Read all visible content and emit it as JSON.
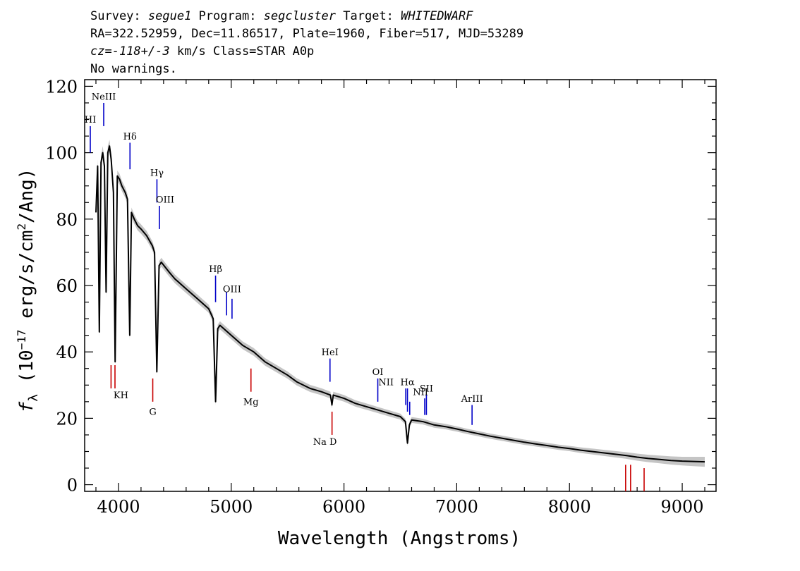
{
  "header": {
    "line1": {
      "survey_label": "Survey: ",
      "survey": "segue1",
      "program_label": " Program: ",
      "program": "segcluster",
      "target_label": " Target: ",
      "target": "WHITEDWARF"
    },
    "line2": "RA=322.52959, Dec=11.86517, Plate=1960, Fiber=517, MJD=53289",
    "line3": {
      "cz": "cz=-118+/-3",
      "rest": " km/s Class=STAR A0p"
    },
    "line4": "No warnings."
  },
  "chart_data": {
    "type": "line",
    "xlabel": "Wavelength (Angstroms)",
    "ylabel": {
      "f": "f",
      "sub": "λ",
      "pre": " (10",
      "exp": "−17",
      "mid": " erg/s/cm",
      "exp2": "2",
      "post": "/Ang)"
    },
    "xlim": [
      3700,
      9300
    ],
    "ylim": [
      -2,
      122
    ],
    "xticks": [
      4000,
      5000,
      6000,
      7000,
      8000,
      9000
    ],
    "yticks": [
      0,
      20,
      40,
      60,
      80,
      100,
      120
    ],
    "series": [
      {
        "role": "flux",
        "color": "#000000",
        "points": [
          [
            3800,
            82
          ],
          [
            3815,
            96
          ],
          [
            3830,
            46
          ],
          [
            3845,
            97
          ],
          [
            3860,
            100
          ],
          [
            3875,
            96
          ],
          [
            3890,
            58
          ],
          [
            3905,
            100
          ],
          [
            3920,
            102
          ],
          [
            3935,
            98
          ],
          [
            3955,
            88
          ],
          [
            3970,
            37
          ],
          [
            3990,
            93
          ],
          [
            4010,
            92
          ],
          [
            4030,
            90
          ],
          [
            4060,
            88
          ],
          [
            4080,
            86
          ],
          [
            4100,
            45
          ],
          [
            4115,
            82
          ],
          [
            4140,
            80
          ],
          [
            4170,
            78
          ],
          [
            4200,
            77
          ],
          [
            4250,
            75
          ],
          [
            4300,
            72
          ],
          [
            4320,
            70
          ],
          [
            4340,
            34
          ],
          [
            4360,
            66
          ],
          [
            4380,
            67
          ],
          [
            4450,
            64
          ],
          [
            4500,
            62
          ],
          [
            4600,
            59
          ],
          [
            4700,
            56
          ],
          [
            4800,
            53
          ],
          [
            4840,
            50
          ],
          [
            4861,
            25
          ],
          [
            4880,
            47
          ],
          [
            4900,
            48
          ],
          [
            5000,
            45
          ],
          [
            5100,
            42
          ],
          [
            5200,
            40
          ],
          [
            5300,
            37
          ],
          [
            5400,
            35
          ],
          [
            5500,
            33
          ],
          [
            5580,
            31
          ],
          [
            5700,
            29
          ],
          [
            5800,
            28
          ],
          [
            5880,
            27
          ],
          [
            5893,
            24
          ],
          [
            5905,
            27
          ],
          [
            6000,
            26
          ],
          [
            6100,
            24.5
          ],
          [
            6200,
            23.5
          ],
          [
            6300,
            22.5
          ],
          [
            6400,
            21.5
          ],
          [
            6500,
            20.5
          ],
          [
            6545,
            19
          ],
          [
            6563,
            12.5
          ],
          [
            6580,
            18
          ],
          [
            6600,
            19.5
          ],
          [
            6700,
            19
          ],
          [
            6800,
            18
          ],
          [
            6900,
            17.5
          ],
          [
            7000,
            16.8
          ],
          [
            7100,
            16
          ],
          [
            7200,
            15.3
          ],
          [
            7300,
            14.6
          ],
          [
            7400,
            14
          ],
          [
            7500,
            13.4
          ],
          [
            7600,
            12.8
          ],
          [
            7700,
            12.3
          ],
          [
            7800,
            11.8
          ],
          [
            7900,
            11.3
          ],
          [
            8000,
            10.9
          ],
          [
            8100,
            10.4
          ],
          [
            8200,
            10
          ],
          [
            8300,
            9.6
          ],
          [
            8400,
            9.2
          ],
          [
            8500,
            8.8
          ],
          [
            8600,
            8.3
          ],
          [
            8700,
            7.9
          ],
          [
            8800,
            7.6
          ],
          [
            8900,
            7.3
          ],
          [
            9000,
            7.1
          ],
          [
            9100,
            7
          ],
          [
            9200,
            6.9
          ]
        ]
      },
      {
        "role": "error",
        "color": "#bbbbbb",
        "points": [
          [
            3800,
            2
          ],
          [
            3900,
            2
          ],
          [
            4000,
            1.6
          ],
          [
            4200,
            1.4
          ],
          [
            4500,
            1.3
          ],
          [
            5000,
            1.2
          ],
          [
            5500,
            1.1
          ],
          [
            6000,
            1
          ],
          [
            6500,
            0.9
          ],
          [
            7000,
            0.8
          ],
          [
            7500,
            0.8
          ],
          [
            8000,
            0.8
          ],
          [
            8500,
            1
          ],
          [
            9000,
            1.3
          ],
          [
            9200,
            1.5
          ]
        ]
      }
    ],
    "lines": {
      "emission": {
        "color": "#0000c8",
        "items": [
          {
            "label": "HI",
            "x": 3750,
            "y0": 100,
            "y1": 108,
            "label_y": 109,
            "dx": 0
          },
          {
            "label": "NeIII",
            "x": 3869,
            "y0": 108,
            "y1": 115,
            "label_y": 116,
            "dx": 0
          },
          {
            "label": "Hδ",
            "x": 4102,
            "y0": 95,
            "y1": 103,
            "label_y": 104,
            "dx": 0
          },
          {
            "label": "Hγ",
            "x": 4341,
            "y0": 85,
            "y1": 92,
            "label_y": 93,
            "dx": 0
          },
          {
            "label": "OIII",
            "x": 4363,
            "y0": 77,
            "y1": 84,
            "label_y": 85,
            "dx": 8
          },
          {
            "label": "Hβ",
            "x": 4861,
            "y0": 55,
            "y1": 63,
            "label_y": 64,
            "dx": 0
          },
          {
            "label": "",
            "x": 4959,
            "y0": 51,
            "y1": 58,
            "label_y": 59,
            "dx": 0
          },
          {
            "label": "OIII",
            "x": 5007,
            "y0": 50,
            "y1": 56,
            "label_y": 58,
            "dx": 0
          },
          {
            "label": "HeI",
            "x": 5876,
            "y0": 31,
            "y1": 38,
            "label_y": 39,
            "dx": 0
          },
          {
            "label": "OI",
            "x": 6300,
            "y0": 25,
            "y1": 32,
            "label_y": 33,
            "dx": 0
          },
          {
            "label": "NII",
            "x": 6548,
            "y0": 24,
            "y1": 29,
            "label_y": 30,
            "dx": -28
          },
          {
            "label": "Hα",
            "x": 6563,
            "y0": 22,
            "y1": 29,
            "label_y": 30,
            "dx": 0
          },
          {
            "label": "",
            "x": 6583,
            "y0": 21,
            "y1": 25,
            "label_y": 26,
            "dx": 0
          },
          {
            "label": "NII",
            "x": 6716,
            "y0": 21,
            "y1": 26,
            "label_y": 27,
            "dx": -6
          },
          {
            "label": "SII",
            "x": 6731,
            "y0": 21,
            "y1": 27,
            "label_y": 28,
            "dx": 0
          },
          {
            "label": "ArIII",
            "x": 7136,
            "y0": 18,
            "y1": 24,
            "label_y": 25,
            "dx": 0
          }
        ]
      },
      "absorption": {
        "color": "#c80000",
        "items": [
          {
            "label": "KH",
            "x": 3934,
            "y0": 29,
            "y1": 36,
            "label_y": 26,
            "dx": 14
          },
          {
            "label": "",
            "x": 3969,
            "y0": 29,
            "y1": 36,
            "label_y": 26,
            "dx": 0
          },
          {
            "label": "G",
            "x": 4304,
            "y0": 25,
            "y1": 32,
            "label_y": 21,
            "dx": 0
          },
          {
            "label": "Mg",
            "x": 5175,
            "y0": 28,
            "y1": 35,
            "label_y": 24,
            "dx": 0
          },
          {
            "label": "Na D",
            "x": 5894,
            "y0": 15,
            "y1": 22,
            "label_y": 12,
            "dx": -10
          },
          {
            "label": "",
            "x": 8498,
            "y0": -2,
            "y1": 6,
            "label_y": -3,
            "dx": 0
          },
          {
            "label": "",
            "x": 8542,
            "y0": -2,
            "y1": 6,
            "label_y": -3,
            "dx": 0
          },
          {
            "label": "",
            "x": 8662,
            "y0": -2,
            "y1": 5,
            "label_y": -3,
            "dx": 0
          }
        ]
      }
    }
  }
}
